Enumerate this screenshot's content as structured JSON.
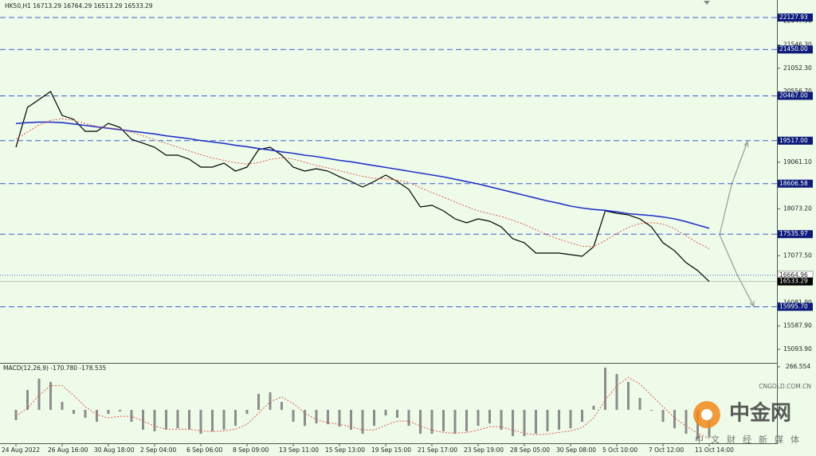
{
  "chart_data": [
    {
      "type": "line",
      "title": "HK50,H1 16713.29 16764.29 16513.29 16533.29",
      "categories": [
        "24 Aug 2022",
        null,
        null,
        null,
        "26 Aug 16:00",
        null,
        null,
        null,
        "30 Aug 18:00",
        null,
        null,
        null,
        "2 Sep 04:00",
        null,
        null,
        null,
        "6 Sep 06:00",
        null,
        null,
        null,
        "8 Sep 09:00",
        null,
        null,
        null,
        "13 Sep 11:00",
        null,
        null,
        null,
        "15 Sep 13:00",
        null,
        null,
        null,
        "19 Sep 15:00",
        null,
        null,
        null,
        "21 Sep 17:00",
        null,
        null,
        null,
        "23 Sep 19:00",
        null,
        null,
        null,
        "28 Sep 05:00",
        null,
        null,
        null,
        "30 Sep 08:00",
        null,
        null,
        null,
        "5 Oct 10:00",
        null,
        null,
        null,
        "7 Oct 12:00",
        null,
        null,
        null,
        "11 Oct 14:00"
      ],
      "series": [
        {
          "color": "#000000",
          "width": 1.2,
          "dashed": false,
          "values": [
            19378,
            20222,
            20390,
            20559,
            20053,
            19969,
            19716,
            19716,
            19884,
            19800,
            19547,
            19463,
            19378,
            19210,
            19210,
            19125,
            18957,
            18957,
            19041,
            18872,
            18957,
            19328,
            19378,
            19210,
            18957,
            18872,
            18923,
            18872,
            18754,
            18653,
            18535,
            18653,
            18788,
            18653,
            18484,
            18113,
            18147,
            18029,
            17860,
            17776,
            17860,
            17810,
            17691,
            17438,
            17354,
            17135,
            17135,
            17135,
            17101,
            17067,
            17270,
            18029,
            17978,
            17944,
            17860,
            17691,
            17354,
            17185,
            16932,
            16764,
            16533.29
          ]
        },
        {
          "color": "#2333c8",
          "width": 1.6,
          "dashed": false,
          "values": [
            19880,
            19900,
            19910,
            19910,
            19900,
            19870,
            19840,
            19810,
            19780,
            19750,
            19720,
            19690,
            19660,
            19620,
            19590,
            19560,
            19520,
            19490,
            19460,
            19420,
            19390,
            19350,
            19320,
            19280,
            19250,
            19210,
            19180,
            19140,
            19100,
            19070,
            19030,
            18990,
            18950,
            18910,
            18870,
            18830,
            18790,
            18750,
            18700,
            18650,
            18600,
            18540,
            18480,
            18420,
            18360,
            18300,
            18240,
            18190,
            18130,
            18090,
            18060,
            18040,
            18010,
            17970,
            17950,
            17930,
            17900,
            17860,
            17800,
            17730,
            17660
          ]
        },
        {
          "color": "#e05a4a",
          "width": 1,
          "dashed": true,
          "values": [
            19550,
            19700,
            19850,
            19950,
            19980,
            19950,
            19880,
            19820,
            19790,
            19760,
            19700,
            19620,
            19540,
            19460,
            19380,
            19300,
            19220,
            19150,
            19100,
            19050,
            19020,
            19050,
            19120,
            19150,
            19130,
            19060,
            18990,
            18940,
            18880,
            18820,
            18760,
            18720,
            18710,
            18680,
            18630,
            18520,
            18420,
            18320,
            18220,
            18120,
            18030,
            17970,
            17910,
            17830,
            17740,
            17630,
            17520,
            17430,
            17350,
            17280,
            17270,
            17400,
            17550,
            17680,
            17760,
            17780,
            17750,
            17650,
            17500,
            17350,
            17230
          ]
        }
      ],
      "ylim": [
        14824,
        22499
      ],
      "yticks": [
        {
          "value": 22047.9,
          "label": "22047.90"
        },
        {
          "value": 21546.3,
          "label": "21546.30"
        },
        {
          "value": 21052.3,
          "label": "21052.30"
        },
        {
          "value": 20556.7,
          "label": "20556.70"
        },
        {
          "value": 19061.1,
          "label": "19061.10"
        },
        {
          "value": 18073.2,
          "label": "18073.20"
        },
        {
          "value": 17077.5,
          "label": "17077.50"
        },
        {
          "value": 16081.9,
          "label": "16081.90"
        },
        {
          "value": 15587.9,
          "label": "15587.90"
        },
        {
          "value": 15093.9,
          "label": "15093.90"
        }
      ],
      "levels": [
        22127.93,
        {
          "value": 21450,
          "label": "21450.00"
        },
        {
          "value": 20467,
          "label": "20467.00"
        },
        {
          "value": 19517,
          "label": "19517.00"
        },
        18606.58,
        17535.97,
        {
          "value": 15995.7,
          "label": "15995.70"
        }
      ],
      "level_color": "#3f5fd0",
      "bid_line": 16664.96,
      "last": 16533.29,
      "grid": false
    },
    {
      "type": "bar",
      "title": "MACD(12,26,9) -170.780 -178.535",
      "color": "#8c8c8c",
      "values": [
        -64,
        123,
        193,
        173,
        49,
        -25,
        -49,
        -74,
        -25,
        -10,
        -74,
        -123,
        -133,
        -123,
        -114,
        -123,
        -148,
        -133,
        -123,
        -99,
        -25,
        99,
        109,
        49,
        -74,
        -99,
        -84,
        -89,
        -104,
        -123,
        -148,
        -99,
        -35,
        -49,
        -99,
        -148,
        -148,
        -133,
        -148,
        -133,
        -99,
        -84,
        -123,
        -163,
        -163,
        -148,
        -133,
        -123,
        -114,
        -74,
        25,
        262,
        222,
        173,
        74,
        -5,
        -74,
        -114,
        -148,
        -183,
        -170.78
      ],
      "signal": {
        "color": "#e05a4a",
        "values": [
          -40,
          10,
          90,
          150,
          150,
          90,
          20,
          -30,
          -50,
          -40,
          -40,
          -70,
          -100,
          -120,
          -120,
          -120,
          -130,
          -135,
          -130,
          -120,
          -90,
          -20,
          50,
          80,
          40,
          -20,
          -60,
          -80,
          -90,
          -105,
          -125,
          -125,
          -95,
          -70,
          -70,
          -100,
          -125,
          -140,
          -145,
          -140,
          -125,
          -105,
          -105,
          -125,
          -145,
          -155,
          -150,
          -140,
          -130,
          -110,
          -50,
          60,
          150,
          200,
          160,
          90,
          20,
          -50,
          -100,
          -145,
          -178.535
        ]
      },
      "ylim": [
        -207,
        286
      ],
      "yticks": [
        266.554
      ]
    }
  ],
  "watermark": {
    "logo": "中金网",
    "site": "CNGOLD.COM.CN",
    "tagline": "中文财经新媒体"
  }
}
